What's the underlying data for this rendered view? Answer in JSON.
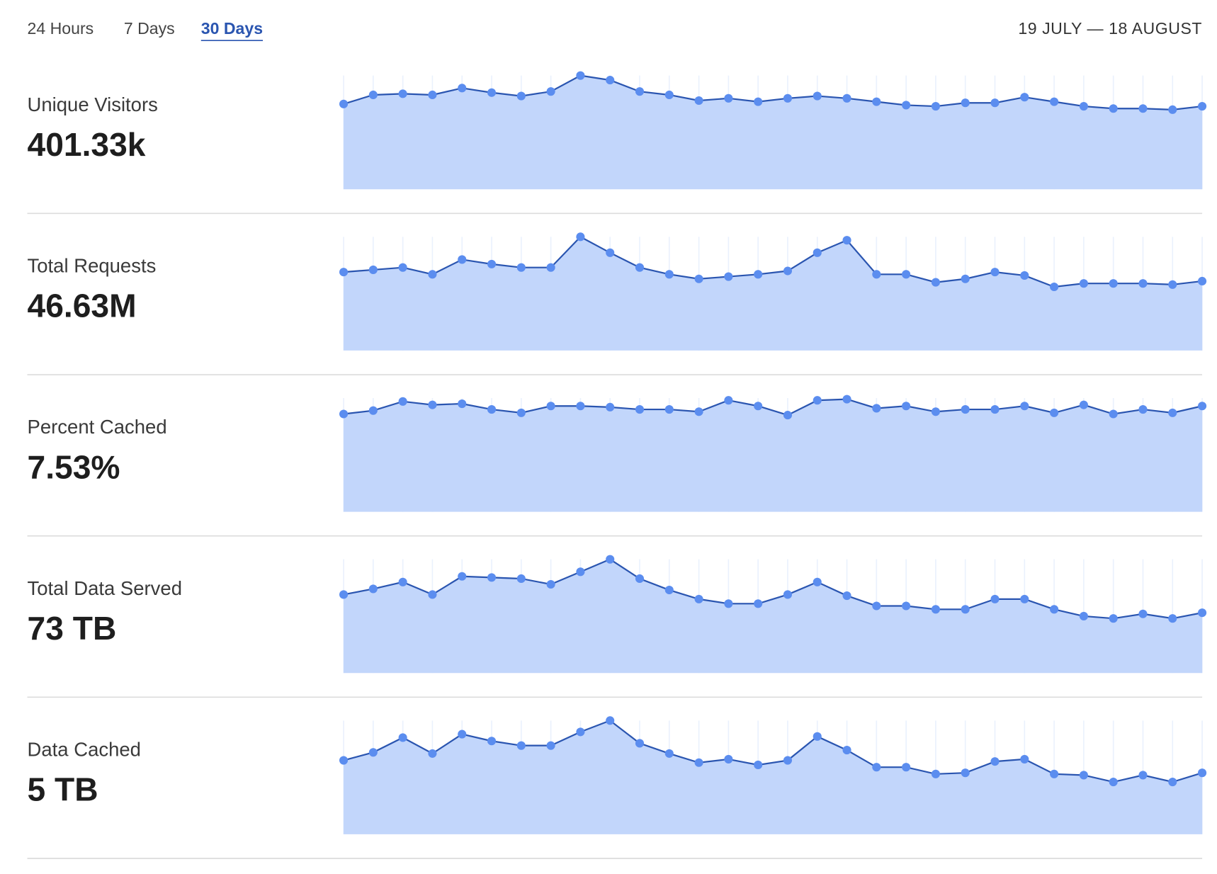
{
  "tabs": [
    "24 Hours",
    "7 Days",
    "30 Days"
  ],
  "active_tab": 2,
  "date_range": "19 JULY — 18 AUGUST",
  "metrics": [
    {
      "label": "Unique Visitors",
      "total": "401.33k",
      "chart": {
        "type": "area",
        "ylim": [
          0,
          100
        ],
        "color": "#2a55b0",
        "fill": "#c2d6fb",
        "values": [
          75,
          83,
          84,
          83,
          89,
          85,
          82,
          86,
          100,
          96,
          86,
          83,
          78,
          80,
          77,
          80,
          82,
          80,
          77,
          74,
          73,
          76,
          76,
          81,
          77,
          73,
          71,
          71,
          70,
          73
        ]
      }
    },
    {
      "label": "Total Requests",
      "total": "46.63M",
      "chart": {
        "type": "area",
        "ylim": [
          0,
          100
        ],
        "color": "#2a55b0",
        "fill": "#c2d6fb",
        "values": [
          69,
          71,
          73,
          67,
          80,
          76,
          73,
          73,
          100,
          86,
          73,
          67,
          63,
          65,
          67,
          70,
          86,
          97,
          67,
          67,
          60,
          63,
          69,
          66,
          56,
          59,
          59,
          59,
          58,
          61
        ]
      }
    },
    {
      "label": "Percent Cached",
      "total": "7.53%",
      "chart": {
        "type": "area",
        "ylim": [
          0,
          100
        ],
        "color": "#2a55b0",
        "fill": "#c2d6fb",
        "values": [
          86,
          89,
          97,
          94,
          95,
          90,
          87,
          93,
          93,
          92,
          90,
          90,
          88,
          98,
          93,
          85,
          98,
          99,
          91,
          93,
          88,
          90,
          90,
          93,
          87,
          94,
          86,
          90,
          87,
          93
        ]
      }
    },
    {
      "label": "Total Data Served",
      "total": "73 TB",
      "chart": {
        "type": "area",
        "ylim": [
          0,
          100
        ],
        "color": "#2a55b0",
        "fill": "#c2d6fb",
        "values": [
          69,
          74,
          80,
          69,
          85,
          84,
          83,
          78,
          89,
          100,
          83,
          73,
          65,
          61,
          61,
          69,
          80,
          68,
          59,
          59,
          56,
          56,
          65,
          65,
          56,
          50,
          48,
          52,
          48,
          53
        ]
      }
    },
    {
      "label": "Data Cached",
      "total": "5 TB",
      "chart": {
        "type": "area",
        "ylim": [
          0,
          100
        ],
        "color": "#2a55b0",
        "fill": "#c2d6fb",
        "values": [
          65,
          72,
          85,
          71,
          88,
          82,
          78,
          78,
          90,
          100,
          80,
          71,
          63,
          66,
          61,
          65,
          86,
          74,
          59,
          59,
          53,
          54,
          64,
          66,
          53,
          52,
          46,
          52,
          46,
          54
        ]
      }
    }
  ]
}
